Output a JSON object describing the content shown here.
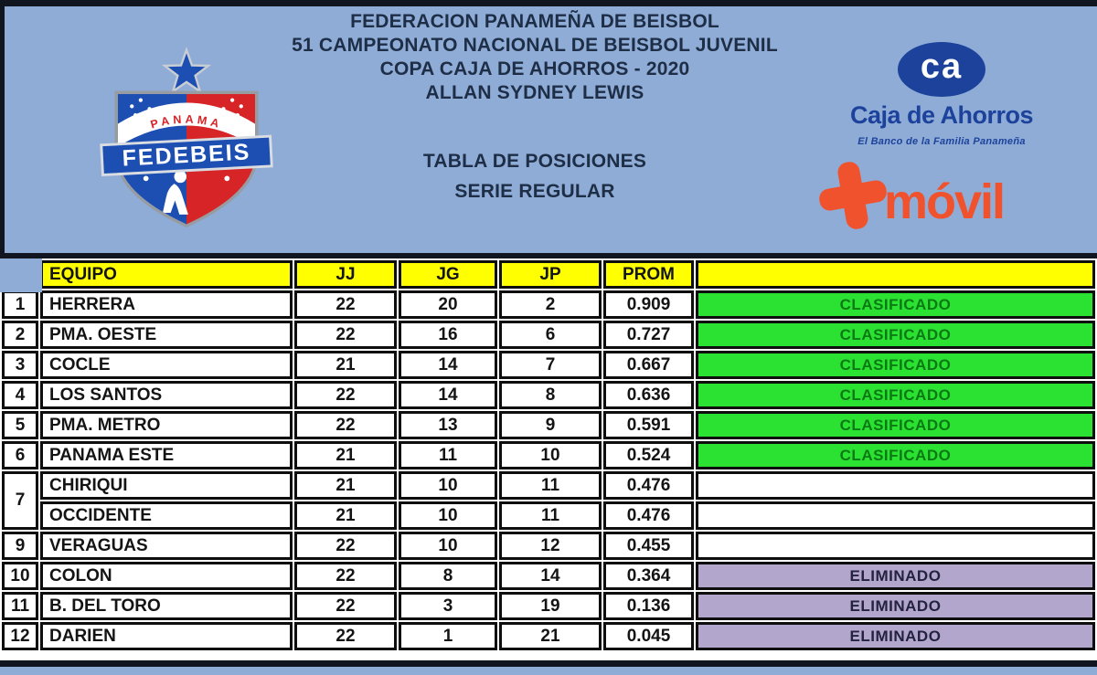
{
  "header": {
    "line1": "FEDERACION PANAMEÑA DE BEISBOL",
    "line2": "51 CAMPEONATO NACIONAL DE BEISBOL JUVENIL",
    "line3": "COPA CAJA DE AHORROS - 2020",
    "line4": "ALLAN SYDNEY LEWIS",
    "section1": "TABLA DE POSICIONES",
    "section2": "SERIE REGULAR"
  },
  "logos": {
    "fedebeis": {
      "country": "PANAMA",
      "name": "FEDEBEIS"
    },
    "caja": {
      "monogram": "ca",
      "name": "Caja de Ahorros",
      "tagline": "El Banco de la Familia Panameña"
    },
    "movil": {
      "name": "móvil"
    }
  },
  "table": {
    "columns": {
      "equipo": "EQUIPO",
      "jj": "JJ",
      "jg": "JG",
      "jp": "JP",
      "prom": "PROM",
      "status": ""
    },
    "rows": [
      {
        "rank": "1",
        "equipo": "HERRERA",
        "jj": "22",
        "jg": "20",
        "jp": "2",
        "prom": "0.909",
        "status": "CLASIFICADO",
        "status_type": "clasificado"
      },
      {
        "rank": "2",
        "equipo": "PMA. OESTE",
        "jj": "22",
        "jg": "16",
        "jp": "6",
        "prom": "0.727",
        "status": "CLASIFICADO",
        "status_type": "clasificado"
      },
      {
        "rank": "3",
        "equipo": "COCLE",
        "jj": "21",
        "jg": "14",
        "jp": "7",
        "prom": "0.667",
        "status": "CLASIFICADO",
        "status_type": "clasificado"
      },
      {
        "rank": "4",
        "equipo": "LOS SANTOS",
        "jj": "22",
        "jg": "14",
        "jp": "8",
        "prom": "0.636",
        "status": "CLASIFICADO",
        "status_type": "clasificado"
      },
      {
        "rank": "5",
        "equipo": "PMA. METRO",
        "jj": "22",
        "jg": "13",
        "jp": "9",
        "prom": "0.591",
        "status": "CLASIFICADO",
        "status_type": "clasificado"
      },
      {
        "rank": "6",
        "equipo": "PANAMA ESTE",
        "jj": "21",
        "jg": "11",
        "jp": "10",
        "prom": "0.524",
        "status": "CLASIFICADO",
        "status_type": "clasificado"
      },
      {
        "rank": "7",
        "rank_span": 2,
        "equipo": "CHIRIQUI",
        "jj": "21",
        "jg": "10",
        "jp": "11",
        "prom": "0.476",
        "status": "",
        "status_type": "none"
      },
      {
        "skip_rank": true,
        "equipo": "OCCIDENTE",
        "jj": "21",
        "jg": "10",
        "jp": "11",
        "prom": "0.476",
        "status": "",
        "status_type": "none"
      },
      {
        "rank": "9",
        "equipo": "VERAGUAS",
        "jj": "22",
        "jg": "10",
        "jp": "12",
        "prom": "0.455",
        "status": "",
        "status_type": "none"
      },
      {
        "rank": "10",
        "equipo": "COLON",
        "jj": "22",
        "jg": "8",
        "jp": "14",
        "prom": "0.364",
        "status": "ELIMINADO",
        "status_type": "eliminado"
      },
      {
        "rank": "11",
        "equipo": "B. DEL TORO",
        "jj": "22",
        "jg": "3",
        "jp": "19",
        "prom": "0.136",
        "status": "ELIMINADO",
        "status_type": "eliminado"
      },
      {
        "rank": "12",
        "equipo": "DARIEN",
        "jj": "22",
        "jg": "1",
        "jp": "21",
        "prom": "0.045",
        "status": "ELIMINADO",
        "status_type": "eliminado"
      }
    ]
  },
  "colors": {
    "page_background": "#8FACD6",
    "title_text": "#1E2E47",
    "header_fill": "#FFFF00",
    "clasificado_fill": "#2BE232",
    "clasificado_text": "#0C7A14",
    "eliminado_fill": "#B3A6CC",
    "eliminado_text": "#23233F",
    "caja_blue": "#1C429C",
    "movil_orange": "#F0522D",
    "fedebeis_blue": "#1D4FB3",
    "fedebeis_red": "#D62427"
  }
}
